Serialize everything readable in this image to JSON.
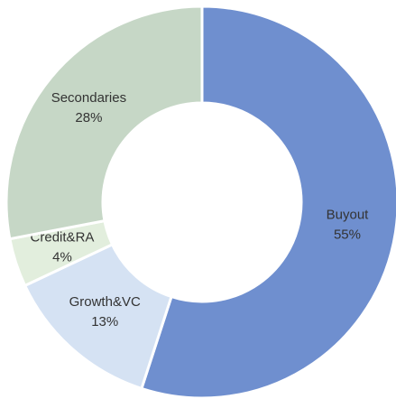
{
  "chart_data": {
    "type": "donut",
    "categories": [
      "Buyout",
      "Growth&VC",
      "Credit&RA",
      "Secondaries"
    ],
    "values": [
      55,
      13,
      4,
      28
    ],
    "value_labels": [
      "55%",
      "13%",
      "4%",
      "28%"
    ],
    "colors": [
      "#6f8fcf",
      "#d5e2f3",
      "#e2eedd",
      "#c6d7c6"
    ]
  }
}
